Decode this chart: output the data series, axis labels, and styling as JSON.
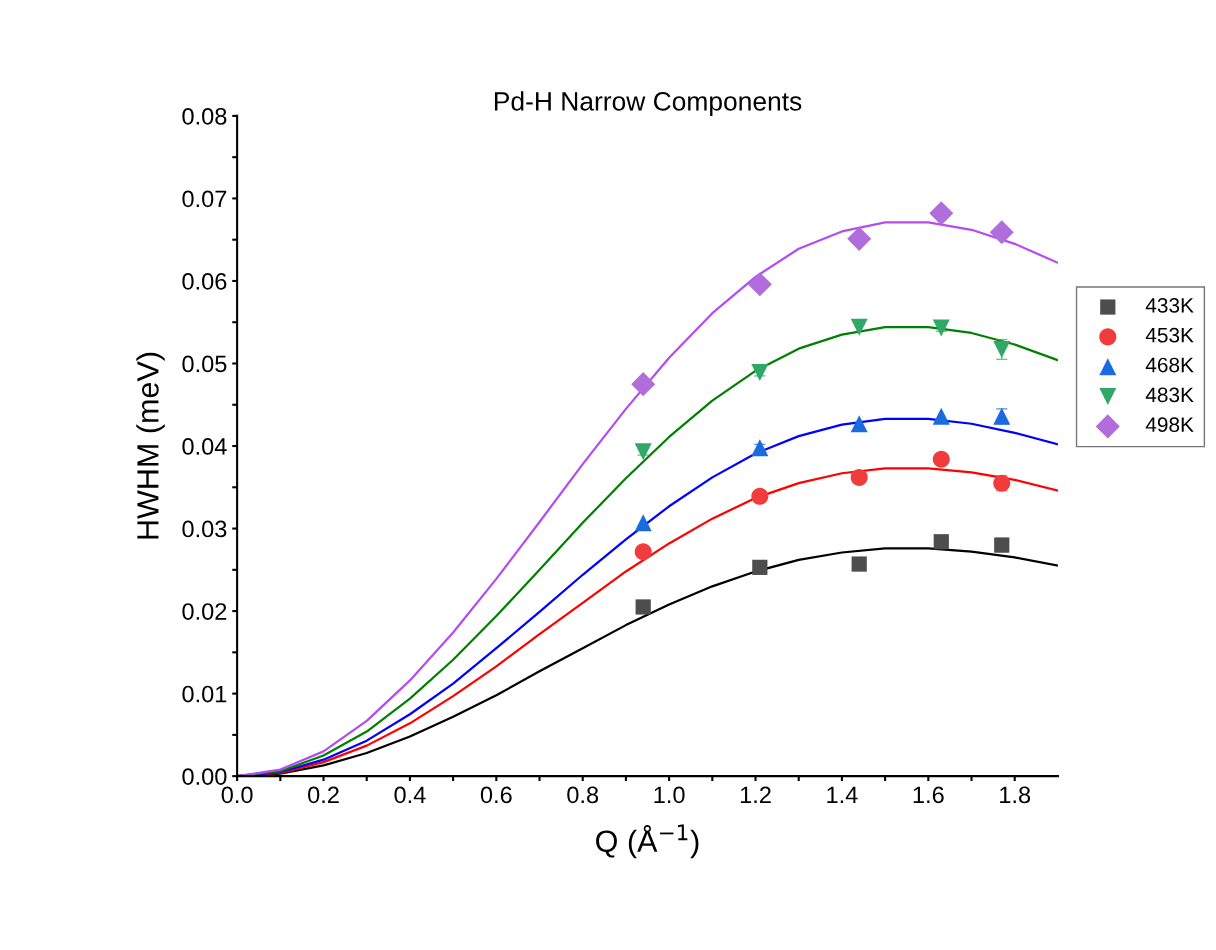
{
  "chart_data": {
    "type": "scatter",
    "title": "Pd-H Narrow Components",
    "xlabel": "Q (Å$^{−1}$)",
    "ylabel": "HWHM (meV)",
    "xlim": [
      0,
      1.9
    ],
    "ylim": [
      0,
      0.08
    ],
    "xticks": [
      {
        "value": 0,
        "label": "0.0"
      },
      {
        "value": 0.1,
        "label": null
      },
      {
        "value": 0.2,
        "label": "0.2"
      },
      {
        "value": 0.3,
        "label": null
      },
      {
        "value": 0.4,
        "label": "0.4"
      },
      {
        "value": 0.5,
        "label": null
      },
      {
        "value": 0.6,
        "label": "0.6"
      },
      {
        "value": 0.7,
        "label": null
      },
      {
        "value": 0.8,
        "label": "0.8"
      },
      {
        "value": 0.9,
        "label": null
      },
      {
        "value": 1.0,
        "label": "1.0"
      },
      {
        "value": 1.1,
        "label": null
      },
      {
        "value": 1.2,
        "label": "1.2"
      },
      {
        "value": 1.3,
        "label": null
      },
      {
        "value": 1.4,
        "label": "1.4"
      },
      {
        "value": 1.5,
        "label": null
      },
      {
        "value": 1.6,
        "label": "1.6"
      },
      {
        "value": 1.7,
        "label": null
      },
      {
        "value": 1.8,
        "label": "1.8"
      }
    ],
    "yticks": [
      {
        "value": 0,
        "label": "0.00"
      },
      {
        "value": 0.005,
        "label": null
      },
      {
        "value": 0.01,
        "label": "0.01"
      },
      {
        "value": 0.015,
        "label": null
      },
      {
        "value": 0.02,
        "label": "0.02"
      },
      {
        "value": 0.025,
        "label": null
      },
      {
        "value": 0.03,
        "label": "0.03"
      },
      {
        "value": 0.035,
        "label": null
      },
      {
        "value": 0.04,
        "label": "0.04"
      },
      {
        "value": 0.045,
        "label": null
      },
      {
        "value": 0.05,
        "label": "0.05"
      },
      {
        "value": 0.055,
        "label": null
      },
      {
        "value": 0.06,
        "label": "0.06"
      },
      {
        "value": 0.065,
        "label": null
      },
      {
        "value": 0.07,
        "label": "0.07"
      },
      {
        "value": 0.075,
        "label": null
      },
      {
        "value": 0.08,
        "label": "0.08"
      }
    ],
    "grid": false,
    "legend": "right",
    "x": [
      0.94,
      1.21,
      1.44,
      1.63,
      1.77
    ],
    "series": [
      {
        "type": "line",
        "color": "#000000",
        "marker": "none",
        "x": [
          0,
          0.1,
          0.2,
          0.3,
          0.4,
          0.5,
          0.6,
          0.7,
          0.8,
          0.9,
          1.0,
          1.1,
          1.2,
          1.3,
          1.4,
          1.5,
          1.6,
          1.7,
          1.8,
          1.9
        ],
        "values": [
          0,
          0.0003,
          0.0013,
          0.0028,
          0.0048,
          0.0072,
          0.0098,
          0.0127,
          0.0155,
          0.0183,
          0.0208,
          0.023,
          0.0248,
          0.0262,
          0.0271,
          0.0276,
          0.0276,
          0.0272,
          0.0265,
          0.0255
        ]
      },
      {
        "type": "line",
        "color": "#ff0000",
        "marker": "none",
        "x": [
          0,
          0.1,
          0.2,
          0.3,
          0.4,
          0.5,
          0.6,
          0.7,
          0.8,
          0.9,
          1.0,
          1.1,
          1.2,
          1.3,
          1.4,
          1.5,
          1.6,
          1.7,
          1.8,
          1.9
        ],
        "values": [
          0,
          0.0004,
          0.0017,
          0.0037,
          0.0064,
          0.0097,
          0.0133,
          0.0172,
          0.021,
          0.0248,
          0.0282,
          0.0312,
          0.0337,
          0.0355,
          0.0367,
          0.0373,
          0.0373,
          0.0368,
          0.0359,
          0.0346
        ]
      },
      {
        "type": "line",
        "color": "#0000ff",
        "marker": "none",
        "x": [
          0,
          0.1,
          0.2,
          0.3,
          0.4,
          0.5,
          0.6,
          0.7,
          0.8,
          0.9,
          1.0,
          1.1,
          1.2,
          1.3,
          1.4,
          1.5,
          1.6,
          1.7,
          1.8,
          1.9
        ],
        "values": [
          0,
          0.0005,
          0.002,
          0.0043,
          0.0075,
          0.0112,
          0.0155,
          0.0199,
          0.0244,
          0.0287,
          0.0327,
          0.0362,
          0.0391,
          0.0412,
          0.0426,
          0.0433,
          0.0433,
          0.0427,
          0.0416,
          0.0402
        ]
      },
      {
        "type": "line",
        "color": "#008000",
        "marker": "none",
        "x": [
          0,
          0.1,
          0.2,
          0.3,
          0.4,
          0.5,
          0.6,
          0.7,
          0.8,
          0.9,
          1.0,
          1.1,
          1.2,
          1.3,
          1.4,
          1.5,
          1.6,
          1.7,
          1.8,
          1.9
        ],
        "values": [
          0,
          0.0006,
          0.0025,
          0.0054,
          0.0094,
          0.0141,
          0.0194,
          0.025,
          0.0307,
          0.0361,
          0.0411,
          0.0455,
          0.0491,
          0.0518,
          0.0535,
          0.0544,
          0.0544,
          0.0537,
          0.0523,
          0.0504
        ]
      },
      {
        "type": "line",
        "color": "#b44cf0",
        "marker": "none",
        "x": [
          0,
          0.1,
          0.2,
          0.3,
          0.4,
          0.5,
          0.6,
          0.7,
          0.8,
          0.9,
          1.0,
          1.1,
          1.2,
          1.3,
          1.4,
          1.5,
          1.6,
          1.7,
          1.8,
          1.9
        ],
        "values": [
          0,
          0.0008,
          0.003,
          0.0067,
          0.0116,
          0.0174,
          0.0239,
          0.0308,
          0.0378,
          0.0445,
          0.0507,
          0.0561,
          0.0605,
          0.0639,
          0.066,
          0.0671,
          0.0671,
          0.0662,
          0.0645,
          0.0622
        ]
      },
      {
        "name": "433K",
        "color": "#4d4d4d",
        "marker": "square",
        "values": [
          0.0205,
          0.0253,
          0.0257,
          0.0284,
          0.028
        ],
        "errors": [
          null,
          null,
          null,
          null,
          0.0008
        ]
      },
      {
        "name": "453K",
        "color": "#f03c3c",
        "marker": "circle",
        "values": [
          0.0272,
          0.0339,
          0.0362,
          0.0384,
          0.0355
        ],
        "errors": [
          null,
          null,
          null,
          0.0005,
          0.0009
        ]
      },
      {
        "name": "468K",
        "color": "#1a6be0",
        "marker": "triangle",
        "values": [
          0.0307,
          0.0398,
          0.0427,
          0.0436,
          0.0436
        ],
        "errors": [
          null,
          0.0004,
          null,
          null,
          0.0009
        ]
      },
      {
        "name": "483K",
        "color": "#30a868",
        "marker": "triangle_down",
        "values": [
          0.0393,
          0.0489,
          0.0544,
          0.0543,
          0.0517
        ],
        "errors": [
          0.0004,
          0.0004,
          null,
          0.0004,
          0.0012
        ]
      },
      {
        "name": "498K",
        "color": "#b06ddb",
        "marker": "diamond",
        "values": [
          0.0475,
          0.0596,
          0.0651,
          0.0682,
          0.0659
        ]
      }
    ]
  }
}
